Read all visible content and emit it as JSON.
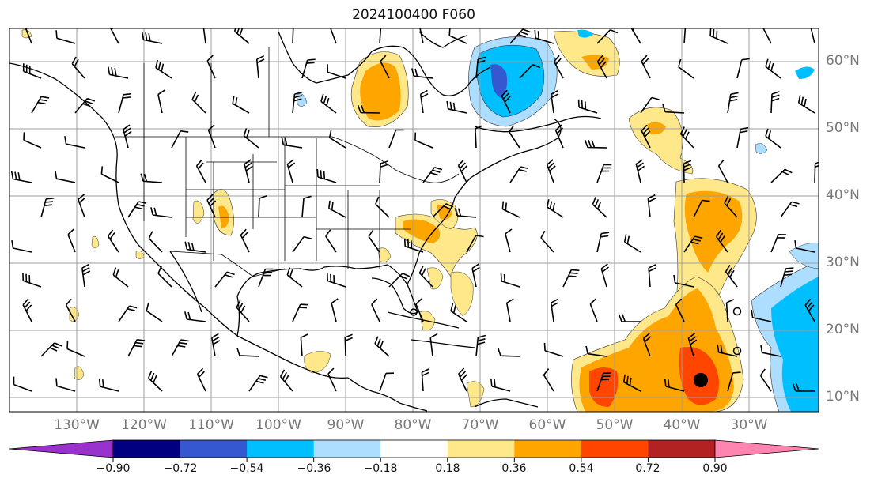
{
  "title": "2024100400 F060",
  "lon_labels": [
    "130°W",
    "120°W",
    "110°W",
    "100°W",
    "90°W",
    "80°W",
    "70°W",
    "60°W",
    "50°W",
    "40°W",
    "30°W"
  ],
  "lat_labels": [
    "60°N",
    "50°N",
    "40°N",
    "30°N",
    "20°N",
    "10°N"
  ],
  "colorbar": {
    "ticks": [
      "−0.90",
      "−0.72",
      "−0.54",
      "−0.36",
      "−0.18",
      "0.18",
      "0.36",
      "0.54",
      "0.72",
      "0.90"
    ],
    "colors": [
      "#9932CC",
      "#000080",
      "#3558D0",
      "#00BFFF",
      "#ADDEFF",
      "#FFFFFF",
      "#FFE88A",
      "#FFA500",
      "#FF4500",
      "#B22222",
      "#FF85B0"
    ]
  },
  "features": {
    "storm_marker": "filled-circle",
    "open_markers": "open-circles"
  }
}
